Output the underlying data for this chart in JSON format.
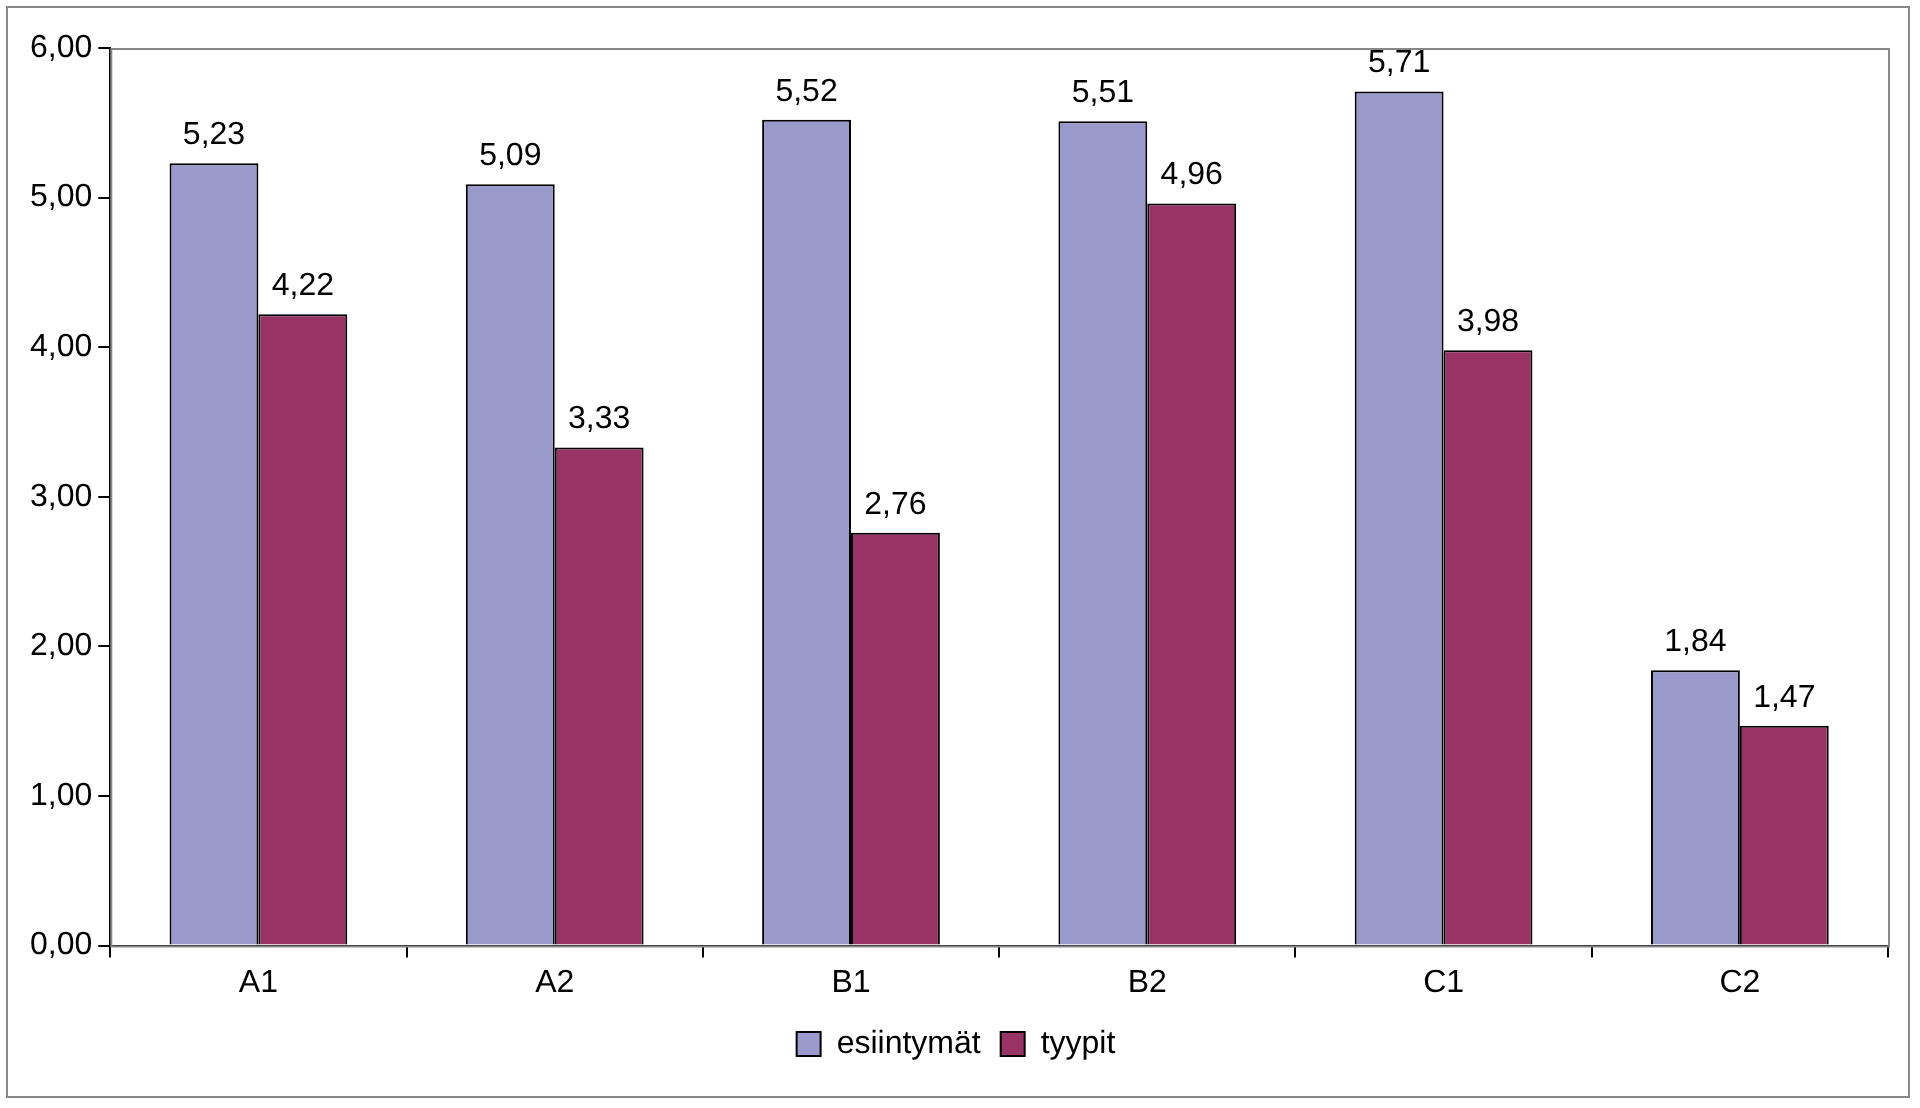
{
  "chart_data": {
    "type": "bar",
    "categories": [
      "A1",
      "A2",
      "B1",
      "B2",
      "C1",
      "C2"
    ],
    "series": [
      {
        "name": "esiintymät",
        "color": "#9999cc",
        "values": [
          5.23,
          5.09,
          5.52,
          5.51,
          5.71,
          1.84
        ],
        "value_labels": [
          "5,23",
          "5,09",
          "5,52",
          "5,51",
          "5,71",
          "1,84"
        ]
      },
      {
        "name": "tyypit",
        "color": "#993366",
        "values": [
          4.22,
          3.33,
          2.76,
          4.96,
          3.98,
          1.47
        ],
        "value_labels": [
          "4,22",
          "3,33",
          "2,76",
          "4,96",
          "3,98",
          "1,47"
        ]
      }
    ],
    "ylim": [
      0,
      6
    ],
    "yticks": [
      {
        "value": 0,
        "label": "0,00"
      },
      {
        "value": 1,
        "label": "1,00"
      },
      {
        "value": 2,
        "label": "2,00"
      },
      {
        "value": 3,
        "label": "3,00"
      },
      {
        "value": 4,
        "label": "4,00"
      },
      {
        "value": 5,
        "label": "5,00"
      },
      {
        "value": 6,
        "label": "6,00"
      }
    ],
    "grid": false,
    "legend": "bottom"
  }
}
